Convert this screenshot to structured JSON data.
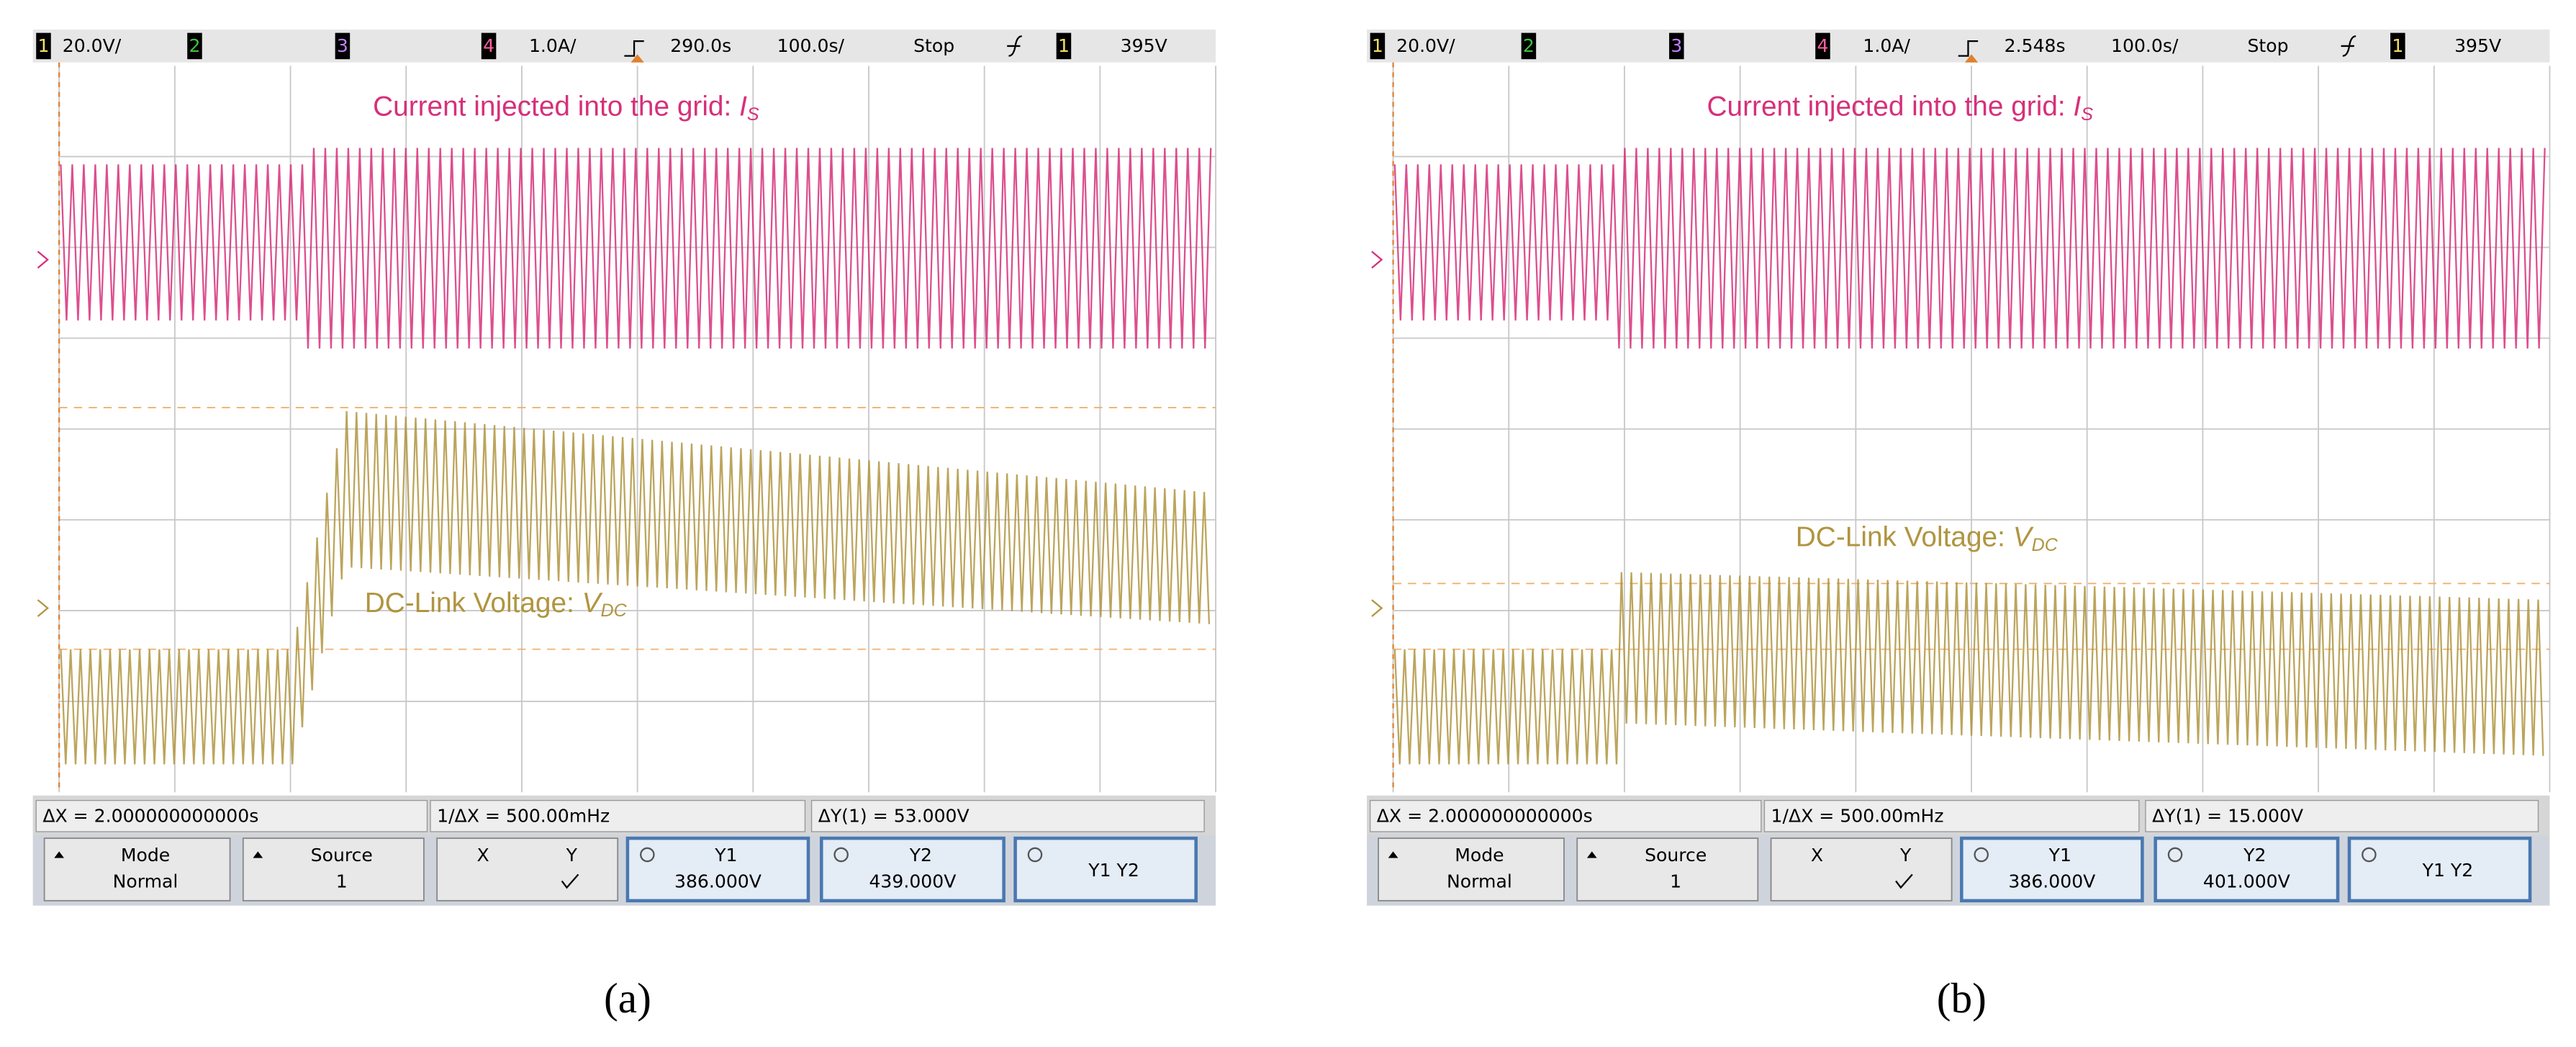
{
  "panels": [
    {
      "status": {
        "ch1": "1",
        "ch1_scale": "20.0V/",
        "ch2": "2",
        "ch3": "3",
        "ch4": "4",
        "ch4_scale": "1.0A/",
        "delay": "290.0s",
        "timebase": "100.0s/",
        "run_state": "Stop",
        "trigger_source": "1",
        "trigger_level": "395V"
      },
      "annotations": {
        "current": {
          "text": "Current injected into the grid: ",
          "symbol": "I",
          "subscript": "S"
        },
        "voltage": {
          "text": "DC-Link Voltage: ",
          "symbol": "V",
          "subscript": "DC"
        }
      },
      "measurements": {
        "delta_x": "ΔX = 2.000000000000s",
        "inverse_delta_x": "1/ΔX = 500.00mHz",
        "delta_y": "ΔY(1) = 53.000V"
      },
      "softkeys": [
        {
          "label": "Mode",
          "value": "Normal"
        },
        {
          "label": "Source",
          "value": "1"
        },
        {
          "label": "X",
          "value": "Y"
        },
        {
          "label": "Y1",
          "value": "386.000V"
        },
        {
          "label": "Y2",
          "value": "439.000V"
        },
        {
          "label": "Y1 Y2"
        }
      ],
      "caption": "(a)"
    },
    {
      "status": {
        "ch1": "1",
        "ch1_scale": "20.0V/",
        "ch2": "2",
        "ch3": "3",
        "ch4": "4",
        "ch4_scale": "1.0A/",
        "delay": "2.548s",
        "timebase": "100.0s/",
        "run_state": "Stop",
        "trigger_source": "1",
        "trigger_level": "395V"
      },
      "annotations": {
        "current": {
          "text": "Current injected into the grid: ",
          "symbol": "I",
          "subscript": "S"
        },
        "voltage": {
          "text": "DC-Link Voltage: ",
          "symbol": "V",
          "subscript": "DC"
        }
      },
      "measurements": {
        "delta_x": "ΔX = 2.000000000000s",
        "inverse_delta_x": "1/ΔX = 500.00mHz",
        "delta_y": "ΔY(1) = 15.000V"
      },
      "softkeys": [
        {
          "label": "Mode",
          "value": "Normal"
        },
        {
          "label": "Source",
          "value": "1"
        },
        {
          "label": "X",
          "value": "Y"
        },
        {
          "label": "Y1",
          "value": "386.000V"
        },
        {
          "label": "Y2",
          "value": "401.000V"
        },
        {
          "label": "Y1 Y2"
        }
      ],
      "caption": "(b)"
    }
  ]
}
